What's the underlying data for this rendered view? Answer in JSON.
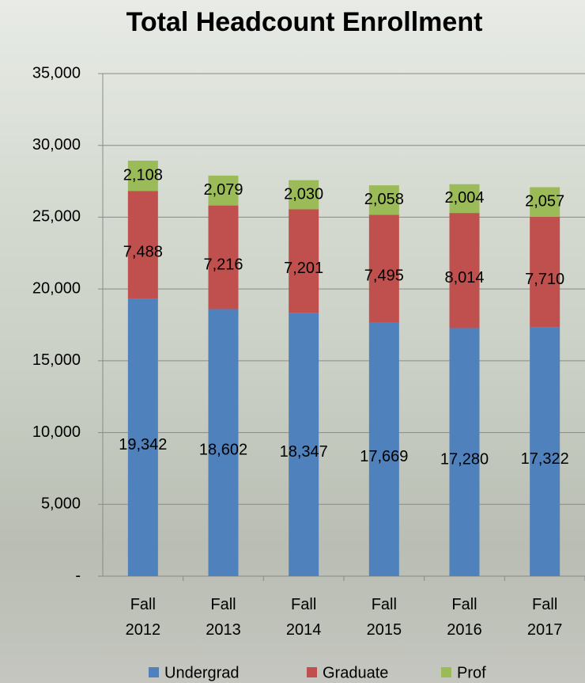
{
  "chart_data": {
    "type": "stacked_bar",
    "title": "Total Headcount Enrollment",
    "categories": [
      "Fall 2012",
      "Fall 2013",
      "Fall 2014",
      "Fall 2015",
      "Fall 2016",
      "Fall 2017"
    ],
    "series": [
      {
        "name": "Undergrad",
        "color": "#4f81bd",
        "values": [
          19342,
          18602,
          18347,
          17669,
          17280,
          17322
        ],
        "value_labels": [
          "19,342",
          "18,602",
          "18,347",
          "17,669",
          "17,280",
          "17,322"
        ]
      },
      {
        "name": "Graduate",
        "color": "#c0504d",
        "values": [
          7488,
          7216,
          7201,
          7495,
          8014,
          7710
        ],
        "value_labels": [
          "7,488",
          "7,216",
          "7,201",
          "7,495",
          "8,014",
          "7,710"
        ]
      },
      {
        "name": "Prof",
        "color": "#9bbb59",
        "values": [
          2108,
          2079,
          2030,
          2058,
          2004,
          2057
        ],
        "value_labels": [
          "2,108",
          "2,079",
          "2,030",
          "2,058",
          "2,004",
          "2,057"
        ]
      }
    ],
    "ylim": [
      0,
      35000
    ],
    "yticks": [
      {
        "value": 0,
        "label": "-"
      },
      {
        "value": 5000,
        "label": "5,000"
      },
      {
        "value": 10000,
        "label": "10,000"
      },
      {
        "value": 15000,
        "label": "15,000"
      },
      {
        "value": 20000,
        "label": "20,000"
      },
      {
        "value": 25000,
        "label": "25,000"
      },
      {
        "value": 30000,
        "label": "30,000"
      },
      {
        "value": 35000,
        "label": "35,000"
      }
    ],
    "grid": true,
    "legend": "bottom"
  }
}
